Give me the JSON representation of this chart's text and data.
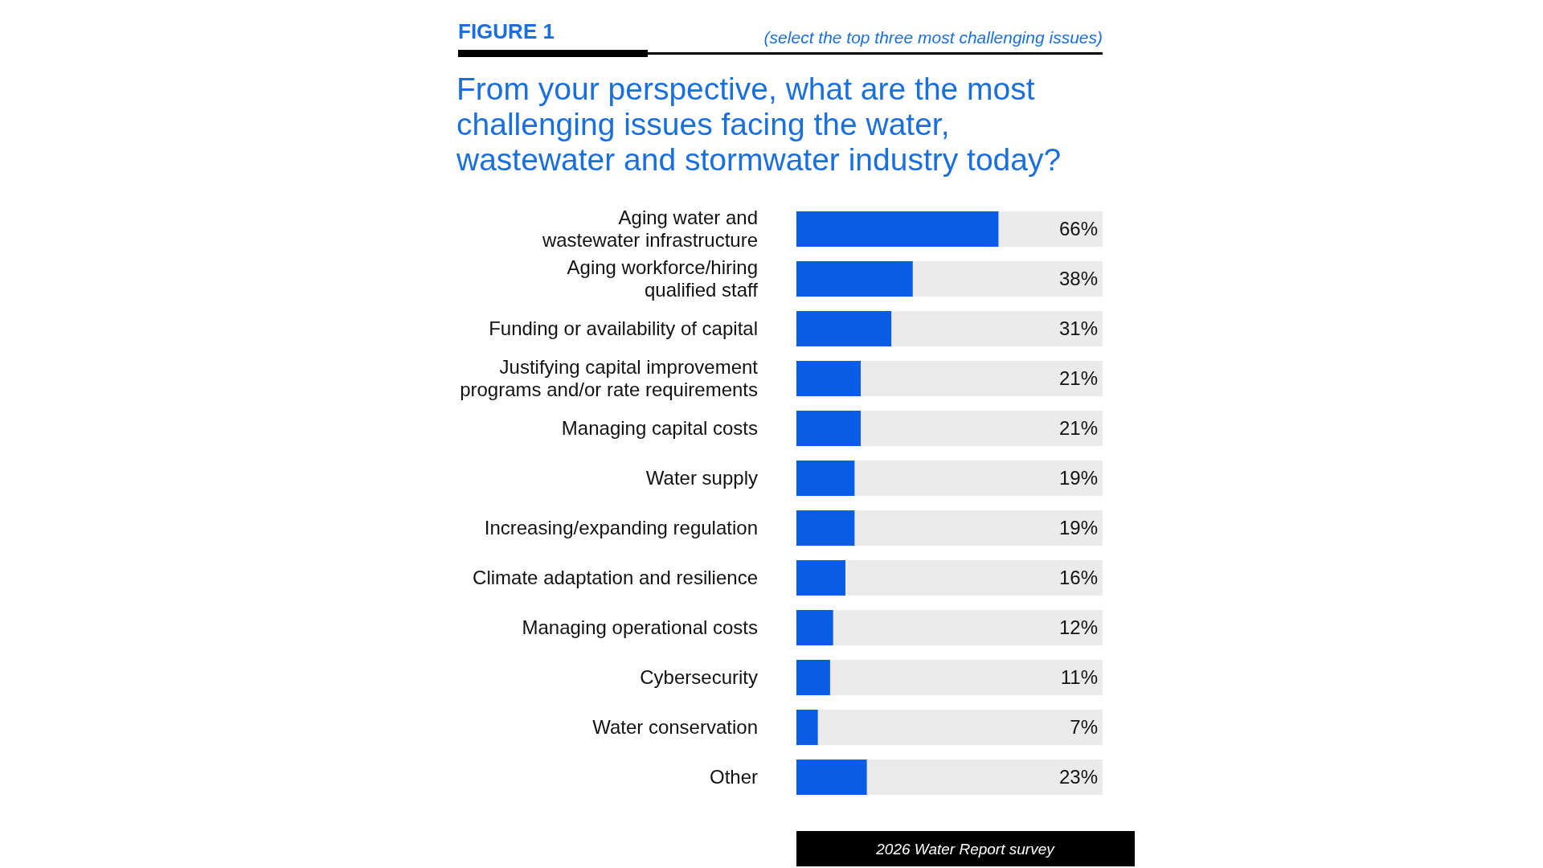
{
  "chart_data": {
    "type": "bar",
    "orientation": "horizontal",
    "title": "From your perspective, what are the most challenging issues facing the water, wastewater and stormwater industry today?",
    "annotations": [
      "FIGURE 1",
      "(select the top three most challenging issues)",
      "2026 Water Report survey"
    ],
    "categories": [
      "Aging water and wastewater infrastructure",
      "Aging workforce/hiring qualified staff",
      "Funding or availability of capital",
      "Justifying capital improvement programs and/or rate requirements",
      "Managing capital costs",
      "Water supply",
      "Increasing/expanding regulation",
      "Climate adaptation and resilience",
      "Managing operational costs",
      "Cybersecurity",
      "Water conservation",
      "Other"
    ],
    "values": [
      66,
      38,
      31,
      21,
      21,
      19,
      19,
      16,
      12,
      11,
      7,
      23
    ],
    "value_labels": [
      "66%",
      "38%",
      "31%",
      "21%",
      "21%",
      "19%",
      "19%",
      "16%",
      "12%",
      "11%",
      "7%",
      "23%"
    ],
    "color": "#0a5ce6",
    "xlim": [
      0,
      100
    ]
  }
}
